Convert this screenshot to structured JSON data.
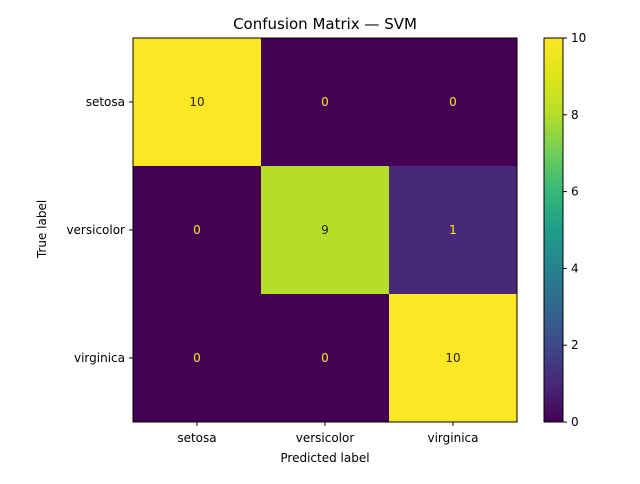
{
  "chart_data": {
    "type": "heatmap",
    "title": "Confusion Matrix — SVM",
    "xlabel": "Predicted label",
    "ylabel": "True label",
    "x_categories": [
      "setosa",
      "versicolor",
      "virginica"
    ],
    "y_categories": [
      "setosa",
      "versicolor",
      "virginica"
    ],
    "values": [
      [
        10,
        0,
        0
      ],
      [
        0,
        9,
        1
      ],
      [
        0,
        0,
        10
      ]
    ],
    "colorbar": {
      "colormap": "viridis",
      "range": [
        0,
        10
      ],
      "ticks": [
        "0",
        "2",
        "4",
        "6",
        "8",
        "10"
      ]
    },
    "colors": {
      "high": "#fde725",
      "nine": "#b5de2b",
      "one": "#482878",
      "low": "#440154",
      "text_on_dark": "#fde725",
      "text_on_light": "#1f1f1f"
    }
  }
}
